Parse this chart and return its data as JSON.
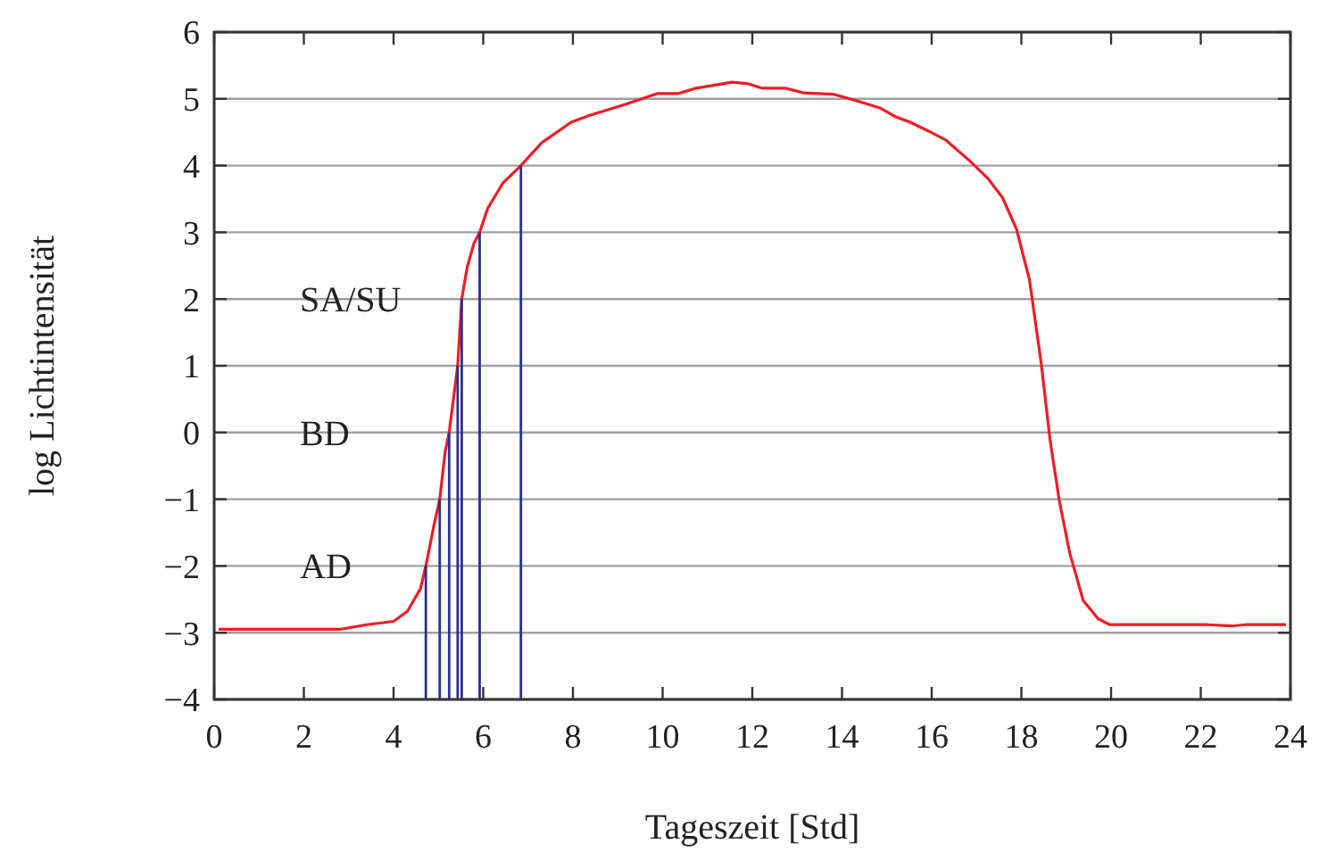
{
  "chart_data": {
    "type": "line",
    "xlabel": "Tageszeit [Std]",
    "ylabel": "log Lichtintensität",
    "xlim": [
      0,
      24
    ],
    "ylim": [
      -4,
      6
    ],
    "xticks": [
      0,
      2,
      4,
      6,
      8,
      10,
      12,
      14,
      16,
      18,
      20,
      22,
      24
    ],
    "yticks": [
      -4,
      -3,
      -2,
      -1,
      0,
      1,
      2,
      3,
      4,
      5,
      6
    ],
    "grid": "y",
    "marker": "none",
    "series": [
      {
        "color": "#ee1c25",
        "x": [
          0.1,
          2.8,
          3.4,
          4.0,
          4.31,
          4.6,
          4.72,
          4.91,
          5.03,
          5.15,
          5.24,
          5.43,
          5.52,
          5.64,
          5.79,
          5.92,
          6.1,
          6.44,
          6.84,
          7.3,
          7.96,
          8.36,
          9.09,
          9.89,
          10.35,
          10.75,
          11.55,
          11.88,
          12.21,
          12.74,
          13.14,
          13.8,
          14.33,
          14.86,
          15.2,
          15.52,
          15.92,
          16.32,
          16.85,
          17.25,
          17.58,
          17.89,
          18.18,
          18.44,
          18.64,
          18.84,
          19.08,
          19.38,
          19.71,
          19.97,
          22.16,
          22.69,
          23.0,
          23.9
        ],
        "values": [
          -2.95,
          -2.95,
          -2.88,
          -2.83,
          -2.68,
          -2.34,
          -2,
          -1.36,
          -1,
          -0.29,
          0,
          1,
          2,
          2.47,
          2.83,
          3,
          3.36,
          3.74,
          4,
          4.34,
          4.65,
          4.75,
          4.9,
          5.08,
          5.08,
          5.16,
          5.25,
          5.23,
          5.16,
          5.16,
          5.09,
          5.07,
          4.97,
          4.86,
          4.73,
          4.65,
          4.52,
          4.38,
          4.07,
          3.81,
          3.52,
          3.05,
          2.29,
          1.05,
          -0.11,
          -1.0,
          -1.81,
          -2.52,
          -2.79,
          -2.88,
          -2.88,
          -2.9,
          -2.88,
          -2.88
        ]
      },
      {
        "type": "bar",
        "color": "#2b2f8f",
        "x": [
          4.72,
          5.03,
          5.24,
          5.43,
          5.52,
          5.92,
          6.84
        ],
        "base": [
          -4,
          -4,
          -4,
          -4,
          -4,
          -4,
          -4
        ],
        "values": [
          2,
          3,
          4,
          5,
          6,
          7,
          8
        ]
      }
    ],
    "annotations": [
      "SA/SU",
      "BD",
      "AD"
    ]
  }
}
